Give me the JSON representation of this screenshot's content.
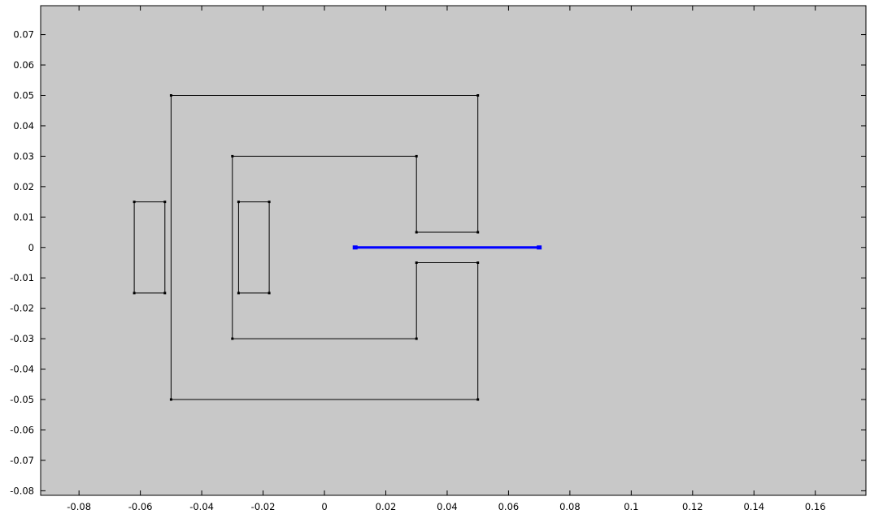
{
  "colors": {
    "canvas_background": "#c8c8c8",
    "page_background": "#ffffff",
    "geometry_stroke": "#000000",
    "selected_edge": "#0000ff",
    "tick_text": "#000000"
  },
  "axes": {
    "x_ticks": [
      "-0.08",
      "-0.06",
      "-0.04",
      "-0.02",
      "0",
      "0.02",
      "0.04",
      "0.06",
      "0.08",
      "0.1",
      "0.12",
      "0.14",
      "0.16"
    ],
    "y_ticks": [
      "0.07",
      "0.06",
      "0.05",
      "0.04",
      "0.03",
      "0.02",
      "0.01",
      "0",
      "-0.01",
      "-0.02",
      "-0.03",
      "-0.04",
      "-0.05",
      "-0.06",
      "-0.07",
      "-0.08"
    ],
    "x_range": [
      -0.0925,
      0.1765
    ],
    "y_range": [
      -0.0815,
      0.0795
    ]
  },
  "geometry": {
    "polygons": [
      {
        "name": "outer-core-outline",
        "points": [
          [
            -0.05,
            0.05
          ],
          [
            0.05,
            0.05
          ],
          [
            0.05,
            0.005
          ],
          [
            0.03,
            0.005
          ],
          [
            0.03,
            0.03
          ],
          [
            -0.03,
            0.03
          ],
          [
            -0.03,
            -0.03
          ],
          [
            0.03,
            -0.03
          ],
          [
            0.03,
            -0.005
          ],
          [
            0.05,
            -0.005
          ],
          [
            0.05,
            -0.05
          ],
          [
            -0.05,
            -0.05
          ]
        ]
      },
      {
        "name": "left-coil-rectangle",
        "points": [
          [
            -0.062,
            0.015
          ],
          [
            -0.052,
            0.015
          ],
          [
            -0.052,
            -0.015
          ],
          [
            -0.062,
            -0.015
          ]
        ]
      },
      {
        "name": "inner-coil-rectangle",
        "points": [
          [
            -0.028,
            0.015
          ],
          [
            -0.018,
            0.015
          ],
          [
            -0.018,
            -0.015
          ],
          [
            -0.028,
            -0.015
          ]
        ]
      }
    ],
    "selected_edge": {
      "name": "selected-boundary-edge",
      "from": [
        0.01,
        0
      ],
      "to": [
        0.07,
        0
      ]
    }
  }
}
